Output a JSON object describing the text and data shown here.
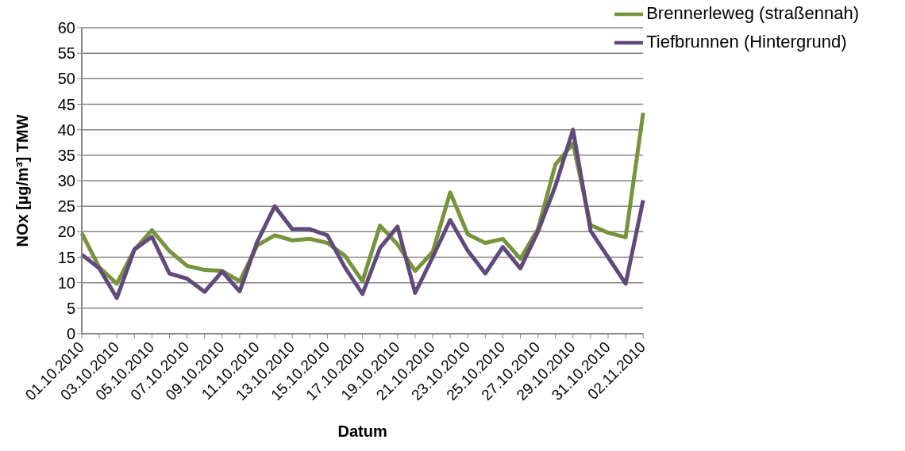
{
  "chart_data": {
    "type": "line",
    "xlabel": "Datum",
    "ylabel": "NOx [µg/m³] TMW",
    "categories": [
      "01.10.2010",
      null,
      "03.10.2010",
      null,
      "05.10.2010",
      null,
      "07.10.2010",
      null,
      "09.10.2010",
      null,
      "11.10.2010",
      null,
      "13.10.2010",
      null,
      "15.10.2010",
      null,
      "17.10.2010",
      null,
      "19.10.2010",
      null,
      "21.10.2010",
      null,
      "23.10.2010",
      null,
      "25.10.2010",
      null,
      "27.10.2010",
      null,
      "29.10.2010",
      null,
      "31.10.2010",
      null,
      "02.11.2010"
    ],
    "series": [
      {
        "name": "Brennerleweg (straßennah)",
        "color": "#77933c",
        "values": [
          19.7,
          13,
          9.8,
          16.5,
          20.3,
          16.2,
          13.3,
          12.5,
          12.3,
          10.3,
          17.3,
          19.3,
          18.3,
          18.6,
          17.8,
          15.3,
          10.3,
          21.2,
          17.5,
          12.3,
          16,
          27.7,
          19.5,
          17.8,
          18.6,
          14.7,
          20.5,
          33.2,
          37.3,
          21.3,
          19.8,
          18.9,
          43.3
        ]
      },
      {
        "name": "Tiefbrunnen (Hintergrund)",
        "color": "#604a7b",
        "values": [
          15.5,
          12.8,
          7,
          16.5,
          19,
          11.8,
          10.8,
          8.2,
          12.2,
          8.3,
          18,
          25,
          20.5,
          20.5,
          19.3,
          13,
          7.8,
          16.8,
          21,
          8,
          15,
          22.3,
          16.3,
          11.8,
          17,
          12.8,
          20,
          29,
          40,
          20.2,
          15,
          9.8,
          26.2
        ]
      }
    ],
    "ylim": [
      0,
      60
    ],
    "yticks": [
      0,
      5,
      10,
      15,
      20,
      25,
      30,
      35,
      40,
      45,
      50,
      55,
      60
    ],
    "grid": "y",
    "legend": "top right",
    "marker": "none",
    "line_style": "solid"
  }
}
